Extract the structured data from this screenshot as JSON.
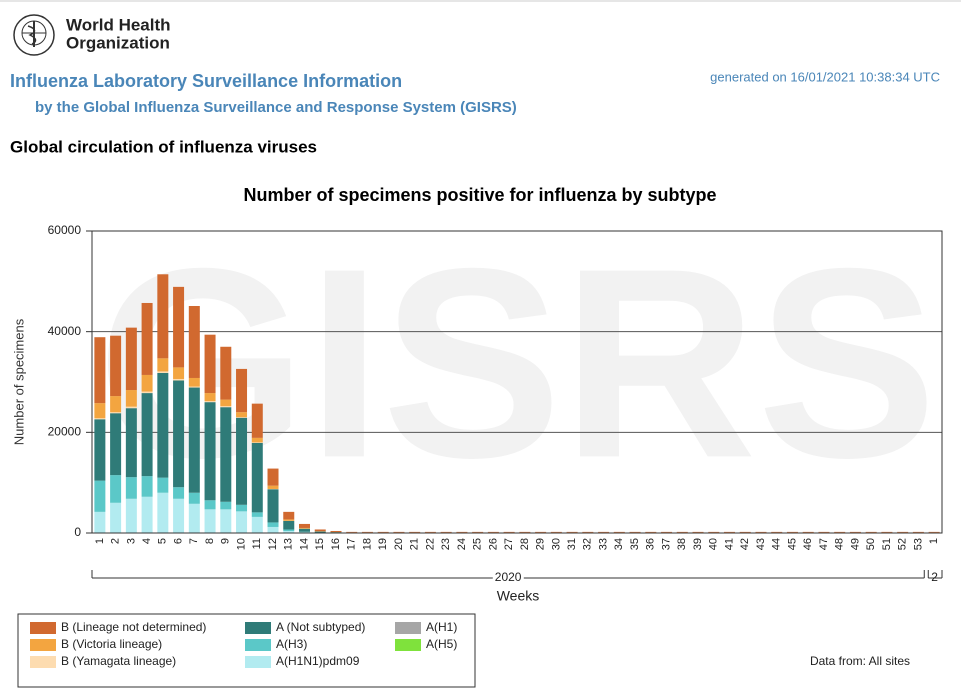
{
  "header": {
    "org_line1": "World Health",
    "org_line2": "Organization",
    "title": "Influenza Laboratory Surveillance Information",
    "subtitle": "by the Global Influenza Surveillance and Response System (GISRS)",
    "generated": "generated on 16/01/2021 10:38:34 UTC",
    "section": "Global circulation of influenza viruses"
  },
  "chart_data": {
    "type": "stacked_bar",
    "title": "Number of specimens positive for influenza by subtype",
    "watermark": "GISRS",
    "y_label": "Number of specimens",
    "x_label": "Weeks",
    "data_from": "Data from: All sites",
    "categories": [
      "1",
      "2",
      "3",
      "4",
      "5",
      "6",
      "7",
      "8",
      "9",
      "10",
      "11",
      "12",
      "13",
      "14",
      "15",
      "16",
      "17",
      "18",
      "19",
      "20",
      "21",
      "22",
      "23",
      "24",
      "25",
      "26",
      "27",
      "28",
      "29",
      "30",
      "31",
      "32",
      "33",
      "34",
      "35",
      "36",
      "37",
      "38",
      "39",
      "40",
      "41",
      "42",
      "43",
      "44",
      "45",
      "46",
      "47",
      "48",
      "49",
      "50",
      "51",
      "52",
      "53",
      "1"
    ],
    "year_groups": [
      "2020",
      "2"
    ],
    "ylim": [
      0,
      60000
    ],
    "yticks": [
      0,
      20000,
      40000,
      60000
    ],
    "grid": true,
    "series": [
      {
        "name": "A(H1N1)pdm09",
        "color": "#b2ebf0",
        "values": [
          4200,
          6000,
          6800,
          7200,
          8000,
          6800,
          5800,
          4700,
          4700,
          4300,
          3200,
          1200,
          400,
          150,
          50,
          30,
          20,
          20,
          20,
          20,
          20,
          20,
          20,
          20,
          20,
          20,
          20,
          20,
          20,
          20,
          20,
          20,
          20,
          20,
          20,
          20,
          20,
          20,
          20,
          20,
          20,
          20,
          20,
          20,
          20,
          20,
          20,
          20,
          20,
          20,
          20,
          20,
          20,
          20
        ]
      },
      {
        "name": "A(H3)",
        "color": "#5bc8c8",
        "values": [
          6200,
          5500,
          4300,
          4100,
          3000,
          2300,
          2200,
          1800,
          1500,
          1300,
          900,
          900,
          300,
          100,
          40,
          20,
          20,
          20,
          20,
          20,
          20,
          20,
          20,
          20,
          20,
          20,
          20,
          20,
          20,
          20,
          20,
          20,
          20,
          20,
          20,
          20,
          20,
          20,
          20,
          20,
          20,
          20,
          20,
          20,
          20,
          20,
          20,
          20,
          20,
          20,
          20,
          20,
          20,
          20
        ]
      },
      {
        "name": "A (Not subtyped)",
        "color": "#2f7b78",
        "values": [
          12200,
          12300,
          13700,
          16500,
          20800,
          21200,
          20900,
          19500,
          18800,
          17300,
          13800,
          6600,
          1700,
          600,
          200,
          120,
          60,
          60,
          60,
          60,
          60,
          60,
          60,
          60,
          60,
          60,
          60,
          60,
          60,
          60,
          60,
          60,
          60,
          60,
          60,
          60,
          60,
          60,
          60,
          60,
          60,
          60,
          60,
          60,
          60,
          60,
          60,
          60,
          60,
          60,
          60,
          60,
          60,
          60
        ]
      },
      {
        "name": "A(H1)",
        "color": "#a6a6a6",
        "values": [
          0,
          0,
          0,
          0,
          0,
          0,
          0,
          0,
          0,
          0,
          0,
          0,
          0,
          0,
          0,
          0,
          0,
          0,
          0,
          0,
          0,
          0,
          0,
          0,
          0,
          0,
          0,
          0,
          0,
          0,
          0,
          0,
          0,
          0,
          0,
          0,
          0,
          0,
          0,
          0,
          0,
          0,
          0,
          0,
          0,
          0,
          0,
          0,
          0,
          0,
          0,
          0,
          0,
          0
        ]
      },
      {
        "name": "A(H5)",
        "color": "#7fe23c",
        "values": [
          0,
          0,
          0,
          0,
          0,
          0,
          0,
          0,
          0,
          0,
          0,
          0,
          0,
          0,
          0,
          0,
          0,
          0,
          0,
          0,
          0,
          0,
          0,
          0,
          0,
          0,
          0,
          0,
          0,
          0,
          0,
          0,
          0,
          0,
          0,
          0,
          0,
          0,
          0,
          0,
          0,
          0,
          0,
          0,
          0,
          0,
          0,
          0,
          0,
          0,
          0,
          0,
          0,
          0
        ]
      },
      {
        "name": "B (Yamagata lineage)",
        "color": "#fddcb0",
        "values": [
          200,
          200,
          300,
          300,
          300,
          300,
          200,
          200,
          200,
          100,
          100,
          50,
          20,
          10,
          5,
          0,
          0,
          0,
          0,
          0,
          0,
          0,
          0,
          0,
          0,
          0,
          0,
          0,
          0,
          0,
          0,
          0,
          0,
          0,
          0,
          0,
          0,
          0,
          0,
          0,
          0,
          0,
          0,
          0,
          0,
          0,
          0,
          0,
          0,
          0,
          0,
          0,
          0,
          0
        ]
      },
      {
        "name": "B (Victoria lineage)",
        "color": "#f3a540",
        "values": [
          3000,
          3200,
          3300,
          3300,
          2600,
          2300,
          1700,
          1600,
          1300,
          1000,
          900,
          650,
          280,
          140,
          65,
          30,
          20,
          20,
          20,
          20,
          20,
          20,
          20,
          20,
          20,
          20,
          20,
          20,
          20,
          20,
          20,
          20,
          20,
          20,
          20,
          20,
          20,
          20,
          20,
          20,
          20,
          20,
          20,
          20,
          20,
          20,
          20,
          20,
          20,
          20,
          20,
          20,
          20,
          20
        ]
      },
      {
        "name": "B (Lineage not determined)",
        "color": "#d1692f",
        "values": [
          13100,
          12000,
          12400,
          14300,
          16700,
          16000,
          14300,
          11600,
          10500,
          8600,
          6800,
          3400,
          1500,
          800,
          340,
          200,
          100,
          100,
          100,
          100,
          100,
          100,
          100,
          100,
          100,
          100,
          100,
          100,
          100,
          100,
          100,
          100,
          100,
          100,
          100,
          100,
          100,
          100,
          100,
          100,
          100,
          100,
          100,
          100,
          100,
          100,
          100,
          100,
          100,
          100,
          100,
          100,
          100,
          100
        ]
      }
    ]
  }
}
